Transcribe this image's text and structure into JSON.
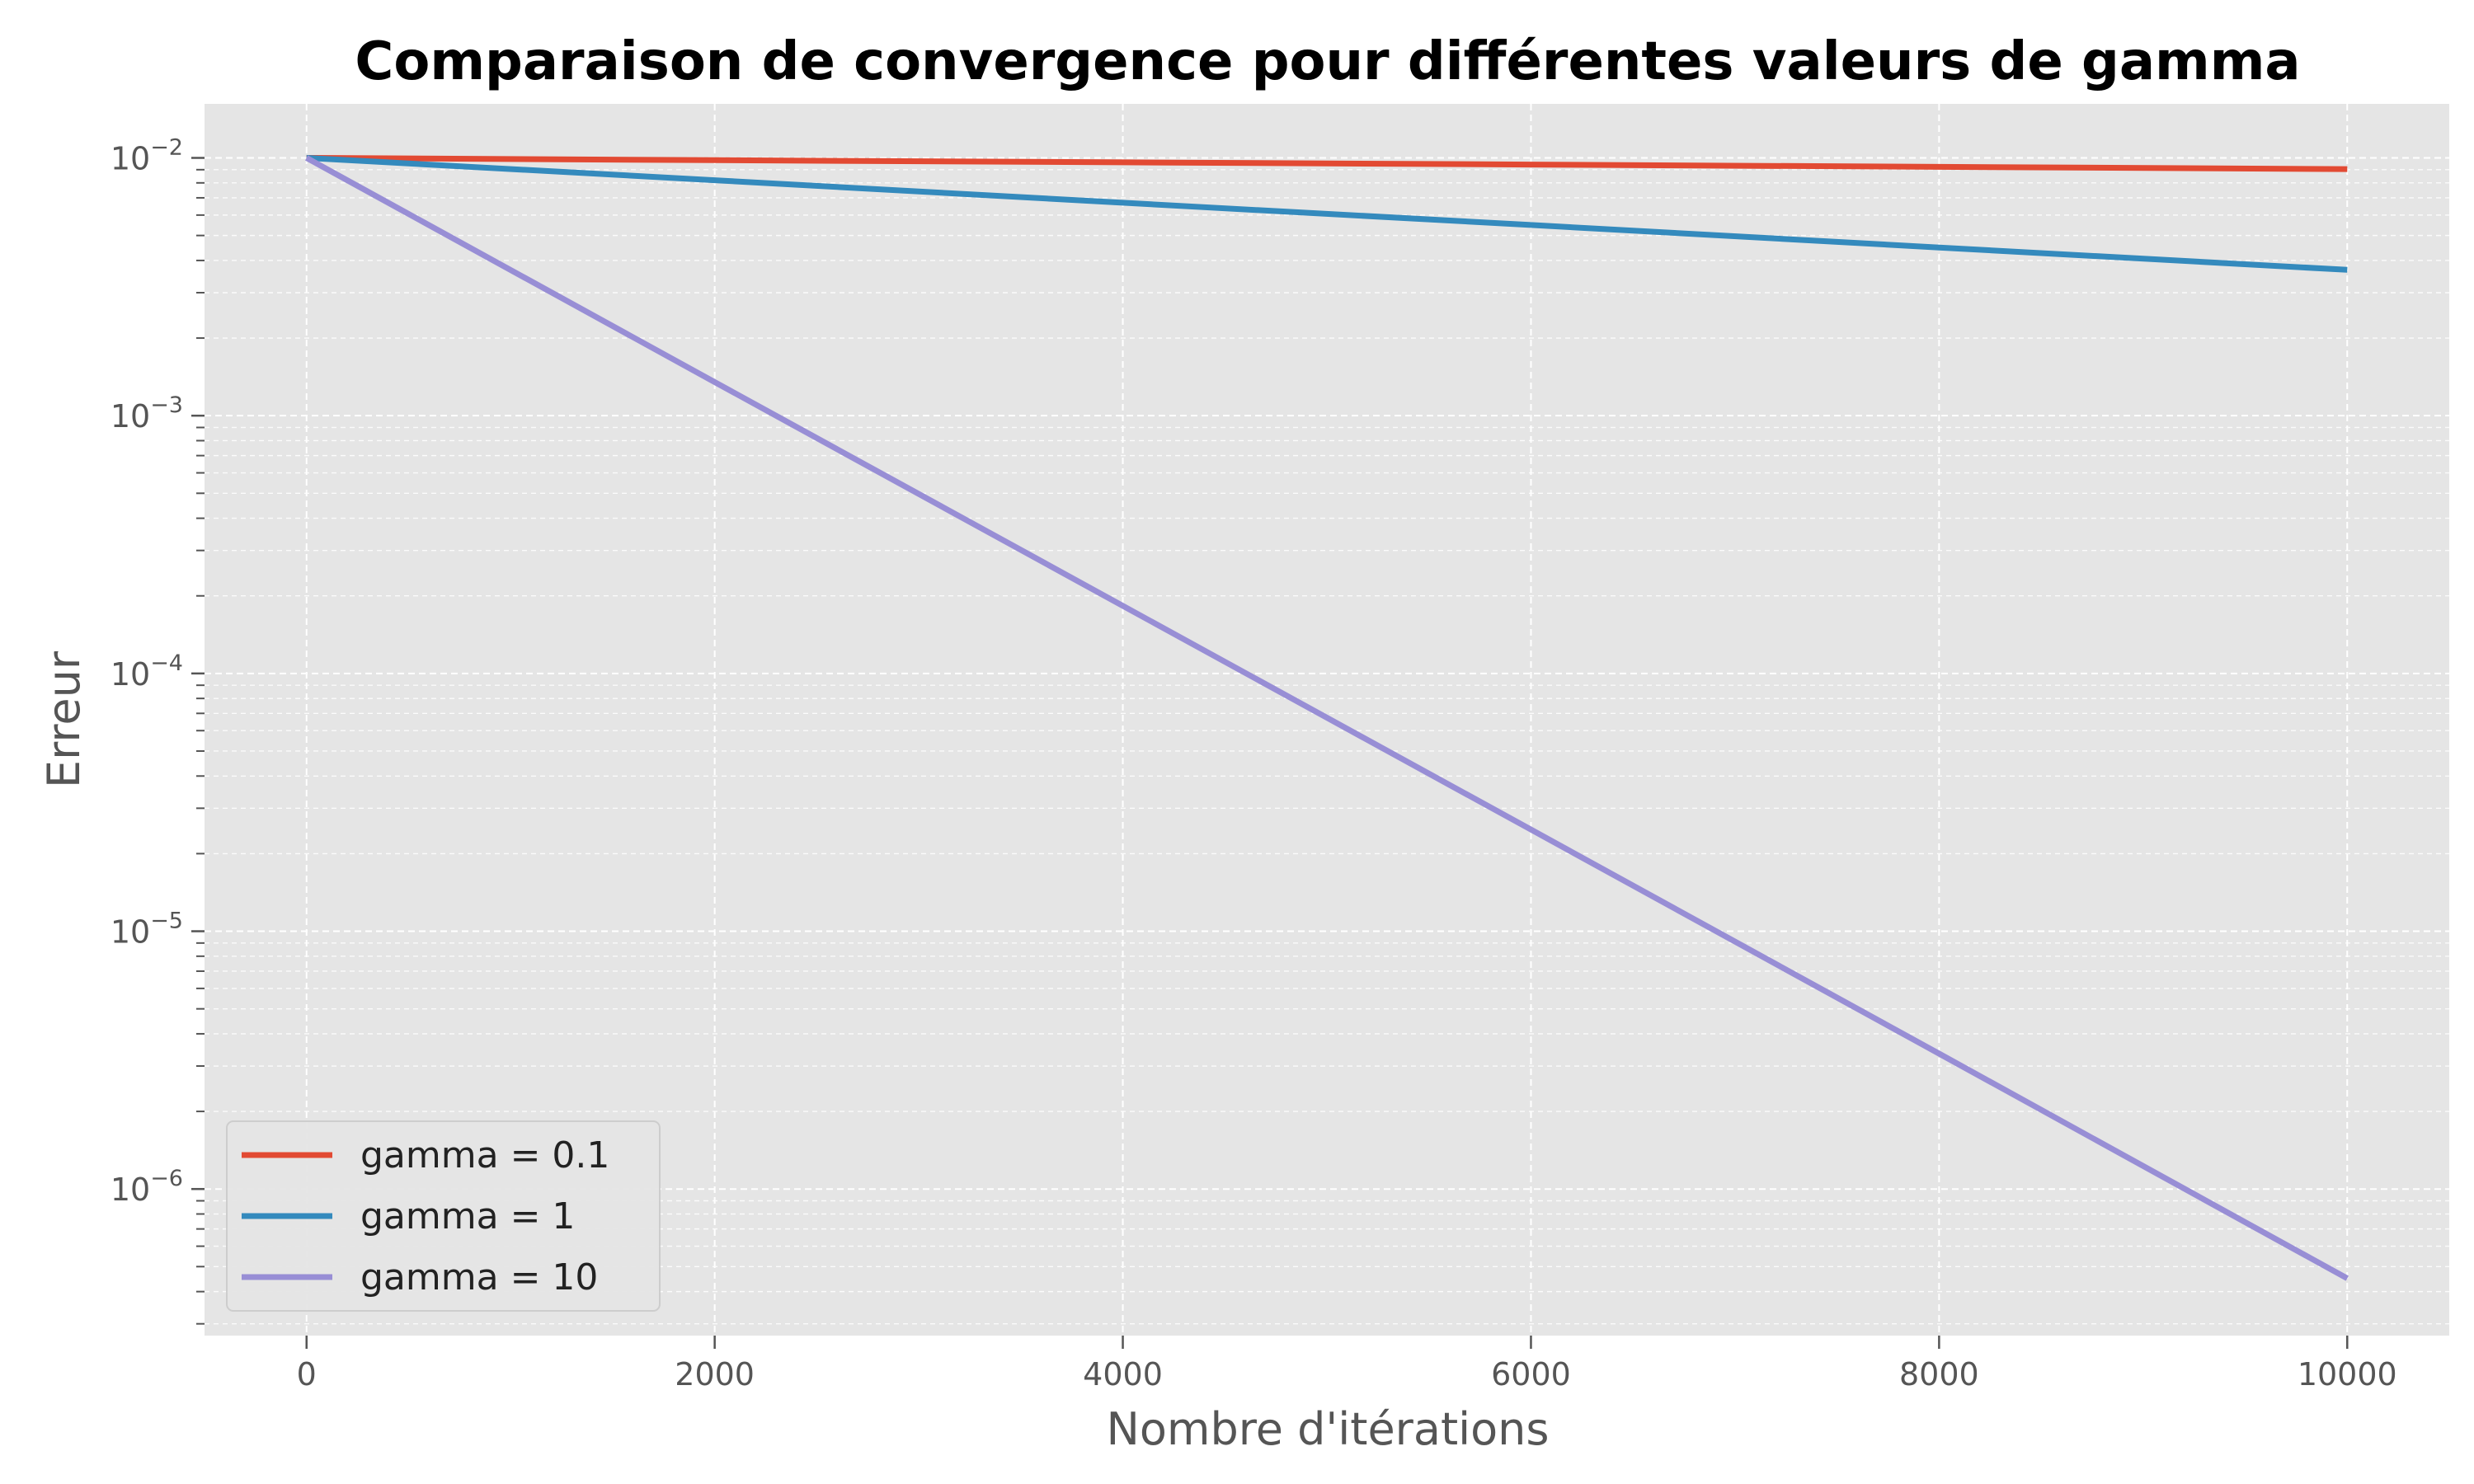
{
  "chart_data": {
    "type": "line",
    "title": "Comparaison de convergence pour différentes valeurs de gamma",
    "xlabel": "Nombre d'itérations",
    "ylabel": "Erreur",
    "xlim": [
      -500,
      10500
    ],
    "ylim": [
      2.7e-07,
      0.0162
    ],
    "yscale": "log",
    "xticks": [
      0,
      2000,
      4000,
      6000,
      8000,
      10000
    ],
    "xtick_labels": [
      "0",
      "2000",
      "4000",
      "6000",
      "8000",
      "10000"
    ],
    "yticks": [
      {
        "value": 0.01,
        "base": "10",
        "exp": "−2"
      },
      {
        "value": 0.001,
        "base": "10",
        "exp": "−3"
      },
      {
        "value": 0.0001,
        "base": "10",
        "exp": "−4"
      },
      {
        "value": 1e-05,
        "base": "10",
        "exp": "−5"
      },
      {
        "value": 1e-06,
        "base": "10",
        "exp": "−6"
      }
    ],
    "grid": true,
    "legend_position": "lower-left",
    "x": [
      0,
      2000,
      4000,
      6000,
      8000,
      10000
    ],
    "series": [
      {
        "name": "gamma = 0.1",
        "color": "#e24a33",
        "values": [
          0.01,
          0.0098,
          0.00961,
          0.00942,
          0.00923,
          0.00905
        ]
      },
      {
        "name": "gamma = 1",
        "color": "#348abd",
        "values": [
          0.01,
          0.00819,
          0.0067,
          0.00549,
          0.00449,
          0.00368
        ]
      },
      {
        "name": "gamma = 10",
        "color": "#988ed5",
        "values": [
          0.01,
          0.00135,
          0.000183,
          2.48e-05,
          3.35e-06,
          4.5e-07
        ]
      }
    ]
  }
}
